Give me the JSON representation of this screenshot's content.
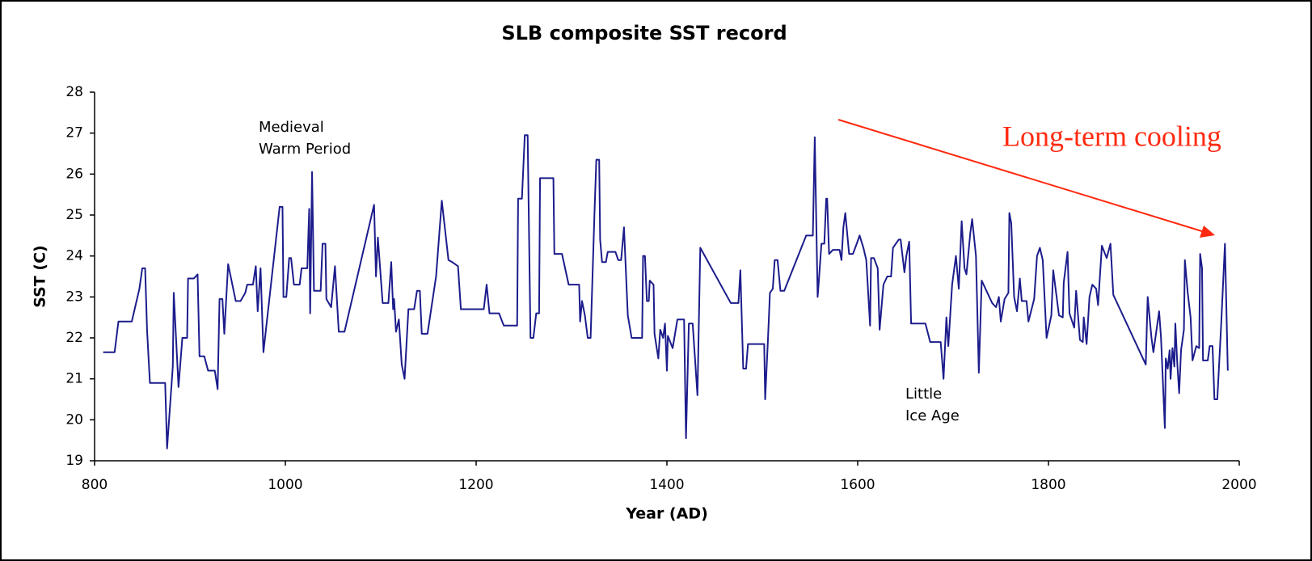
{
  "chart_data": {
    "type": "line",
    "title": "SLB composite SST record",
    "x_label": "Year (AD)",
    "y_label": "SST (C)",
    "color": "#1c1c8c",
    "annotations": [
      [
        "Medieval",
        "Warm Period"
      ],
      [
        "Little",
        "Ice Age"
      ],
      [
        "Long-term cooling"
      ]
    ],
    "xlim": [
      800,
      2000
    ],
    "xticks": [
      800,
      1000,
      1200,
      1400,
      1600,
      1800,
      2000
    ],
    "ylim": [
      19,
      28
    ],
    "yticks": [
      19,
      20,
      21,
      22,
      23,
      24,
      25,
      26,
      27,
      28
    ],
    "x": [
      809,
      821,
      825,
      839,
      847,
      850,
      853,
      855,
      858,
      874,
      876,
      882,
      883,
      888,
      892,
      897,
      898,
      904,
      908,
      910,
      915,
      919,
      926,
      929,
      931,
      934,
      936,
      940,
      948,
      953,
      958,
      960,
      966,
      969,
      971,
      974,
      977,
      994,
      997,
      998,
      1001,
      1004,
      1006,
      1009,
      1015,
      1017,
      1023,
      1025,
      1026,
      1028,
      1030,
      1037,
      1039,
      1042,
      1043,
      1048,
      1052,
      1056,
      1062,
      1093,
      1095,
      1097,
      1102,
      1108,
      1111,
      1113,
      1114,
      1116,
      1119,
      1122,
      1125,
      1129,
      1135,
      1138,
      1141,
      1143,
      1149,
      1158,
      1164,
      1171,
      1175,
      1181,
      1184,
      1201,
      1208,
      1211,
      1214,
      1224,
      1229,
      1243,
      1244,
      1248,
      1251,
      1254,
      1257,
      1260,
      1263,
      1266,
      1267,
      1281,
      1282,
      1290,
      1297,
      1308,
      1309,
      1311,
      1314,
      1317,
      1320,
      1324,
      1326,
      1329,
      1330,
      1332,
      1336,
      1338,
      1346,
      1349,
      1352,
      1355,
      1359,
      1363,
      1374,
      1375,
      1377,
      1379,
      1381,
      1382,
      1386,
      1387,
      1391,
      1393,
      1396,
      1398,
      1400,
      1401,
      1406,
      1411,
      1418,
      1420,
      1423,
      1427,
      1432,
      1435,
      1467,
      1475,
      1477,
      1480,
      1483,
      1485,
      1502,
      1503,
      1506,
      1508,
      1511,
      1513,
      1516,
      1519,
      1523,
      1546,
      1553,
      1555,
      1558,
      1559,
      1562,
      1565,
      1567,
      1568,
      1570,
      1574,
      1581,
      1583,
      1585,
      1587,
      1591,
      1595,
      1599,
      1602,
      1606,
      1609,
      1613,
      1614,
      1617,
      1621,
      1623,
      1627,
      1631,
      1635,
      1637,
      1643,
      1645,
      1649,
      1651,
      1654,
      1656,
      1671,
      1676,
      1687,
      1690,
      1693,
      1695,
      1699,
      1703,
      1706,
      1709,
      1712,
      1714,
      1718,
      1720,
      1724,
      1727,
      1730,
      1736,
      1741,
      1745,
      1748,
      1750,
      1754,
      1758,
      1759,
      1761,
      1764,
      1767,
      1770,
      1772,
      1777,
      1779,
      1785,
      1788,
      1791,
      1794,
      1798,
      1803,
      1805,
      1811,
      1815,
      1816,
      1820,
      1822,
      1827,
      1829,
      1833,
      1836,
      1837,
      1840,
      1843,
      1846,
      1850,
      1852,
      1856,
      1861,
      1865,
      1868,
      1902,
      1904,
      1908,
      1910,
      1916,
      1918,
      1922,
      1923,
      1925,
      1927,
      1928,
      1930,
      1932,
      1933,
      1935,
      1937,
      1939,
      1942,
      1943,
      1946,
      1949,
      1951,
      1955,
      1958,
      1959,
      1961,
      1962,
      1967,
      1969,
      1972,
      1974,
      1977,
      1981,
      1985,
      1988
    ],
    "values": [
      21.65,
      21.65,
      22.4,
      22.4,
      23.2,
      23.7,
      23.7,
      22.2,
      20.9,
      20.9,
      19.3,
      21.3,
      23.1,
      20.8,
      22.0,
      22.0,
      23.45,
      23.45,
      23.55,
      21.55,
      21.55,
      21.2,
      21.2,
      20.75,
      22.95,
      22.95,
      22.1,
      23.8,
      22.9,
      22.9,
      23.1,
      23.3,
      23.3,
      23.75,
      22.65,
      23.7,
      21.65,
      25.2,
      25.2,
      23.0,
      23.0,
      23.95,
      23.95,
      23.3,
      23.3,
      23.7,
      23.7,
      25.15,
      22.6,
      26.05,
      23.15,
      23.15,
      24.3,
      24.3,
      22.95,
      22.75,
      23.75,
      22.15,
      22.15,
      25.25,
      23.5,
      24.45,
      22.85,
      22.85,
      23.85,
      22.7,
      22.95,
      22.15,
      22.45,
      21.35,
      21.0,
      22.7,
      22.7,
      23.15,
      23.15,
      22.1,
      22.1,
      23.5,
      25.35,
      23.9,
      23.85,
      23.75,
      22.7,
      22.7,
      22.7,
      23.3,
      22.6,
      22.6,
      22.3,
      22.3,
      25.4,
      25.4,
      26.95,
      26.95,
      22.0,
      22.0,
      22.6,
      22.6,
      25.9,
      25.9,
      24.05,
      24.05,
      23.3,
      23.3,
      22.4,
      22.9,
      22.55,
      22.0,
      22.0,
      25.0,
      26.35,
      26.35,
      24.4,
      23.85,
      23.85,
      24.1,
      24.1,
      23.9,
      23.9,
      24.7,
      22.55,
      22.0,
      22.0,
      24.0,
      24.0,
      22.9,
      22.9,
      23.4,
      23.3,
      22.1,
      21.5,
      22.2,
      22.0,
      22.35,
      21.2,
      22.05,
      21.75,
      22.45,
      22.45,
      19.55,
      22.35,
      22.35,
      20.6,
      24.2,
      22.85,
      22.85,
      23.65,
      21.25,
      21.25,
      21.85,
      21.85,
      20.5,
      22.0,
      23.1,
      23.2,
      23.9,
      23.9,
      23.15,
      23.15,
      24.5,
      24.5,
      26.9,
      23.0,
      23.3,
      24.3,
      24.3,
      25.4,
      25.4,
      24.05,
      24.15,
      24.15,
      23.9,
      24.7,
      25.05,
      24.05,
      24.05,
      24.3,
      24.5,
      24.2,
      23.9,
      22.3,
      23.95,
      23.95,
      23.7,
      22.2,
      23.3,
      23.5,
      23.5,
      24.2,
      24.4,
      24.4,
      23.6,
      24.0,
      24.35,
      22.35,
      22.35,
      21.9,
      21.9,
      21.0,
      22.5,
      21.8,
      23.3,
      24.0,
      23.2,
      24.85,
      23.7,
      23.55,
      24.55,
      24.9,
      24.0,
      21.15,
      23.4,
      23.1,
      22.85,
      22.75,
      23.0,
      22.4,
      22.95,
      23.1,
      25.05,
      24.8,
      23.0,
      22.65,
      23.45,
      22.9,
      22.9,
      22.4,
      22.95,
      24.0,
      24.2,
      23.9,
      22.0,
      22.55,
      23.65,
      22.55,
      22.5,
      23.35,
      24.1,
      22.6,
      22.25,
      23.15,
      21.95,
      21.9,
      22.5,
      21.85,
      23.0,
      23.3,
      23.2,
      22.8,
      24.25,
      23.95,
      24.3,
      23.05,
      21.35,
      23.0,
      22.0,
      21.65,
      22.65,
      22.0,
      19.8,
      21.5,
      21.25,
      21.7,
      21.0,
      21.75,
      21.3,
      22.35,
      21.4,
      20.65,
      21.7,
      22.2,
      23.9,
      23.1,
      22.5,
      21.45,
      21.8,
      21.75,
      24.05,
      23.7,
      21.45,
      21.45,
      21.8,
      21.8,
      20.5,
      20.5,
      22.3,
      24.3,
      21.2
    ]
  }
}
